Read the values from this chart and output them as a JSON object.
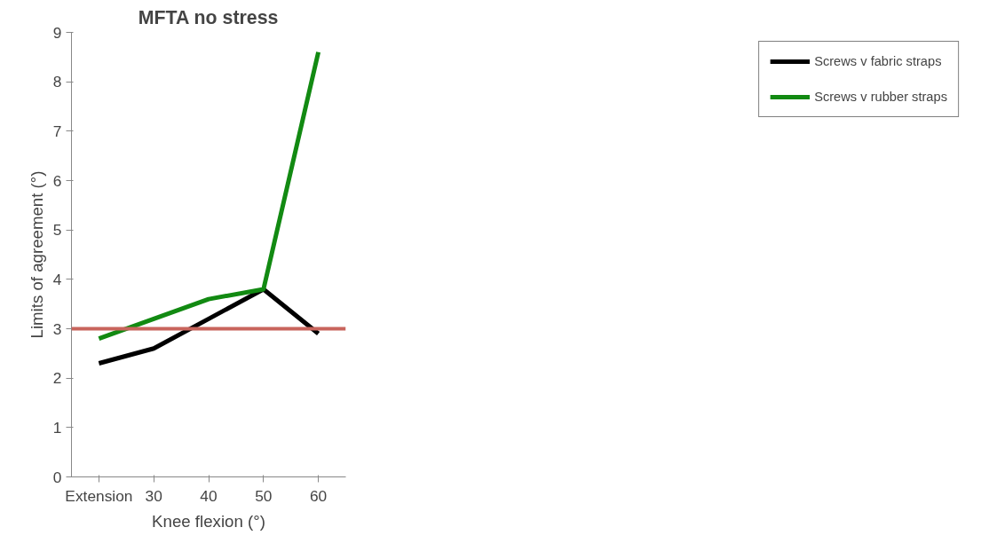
{
  "chart_data": {
    "type": "line",
    "title": "MFTA no stress",
    "xlabel": "Knee flexion (°)",
    "ylabel": "Limits of agreement (°)",
    "categories": [
      "Extension",
      "30",
      "40",
      "50",
      "60"
    ],
    "series": [
      {
        "name": "Screws v fabric straps",
        "color": "#000000",
        "values": [
          2.3,
          2.6,
          3.2,
          3.8,
          2.9
        ]
      },
      {
        "name": "Screws v rubber straps",
        "color": "#128a12",
        "values": [
          2.8,
          3.2,
          3.6,
          3.8,
          8.6
        ]
      }
    ],
    "ylim": [
      0,
      9
    ],
    "yticks": [
      0,
      1,
      2,
      3,
      4,
      5,
      6,
      7,
      8,
      9
    ],
    "ref_lines": [
      {
        "axis": "y",
        "value": 3,
        "label": null,
        "color": "#c8645c"
      }
    ],
    "grid": false,
    "legend": "right",
    "marker": "none",
    "line_style": "solid"
  }
}
